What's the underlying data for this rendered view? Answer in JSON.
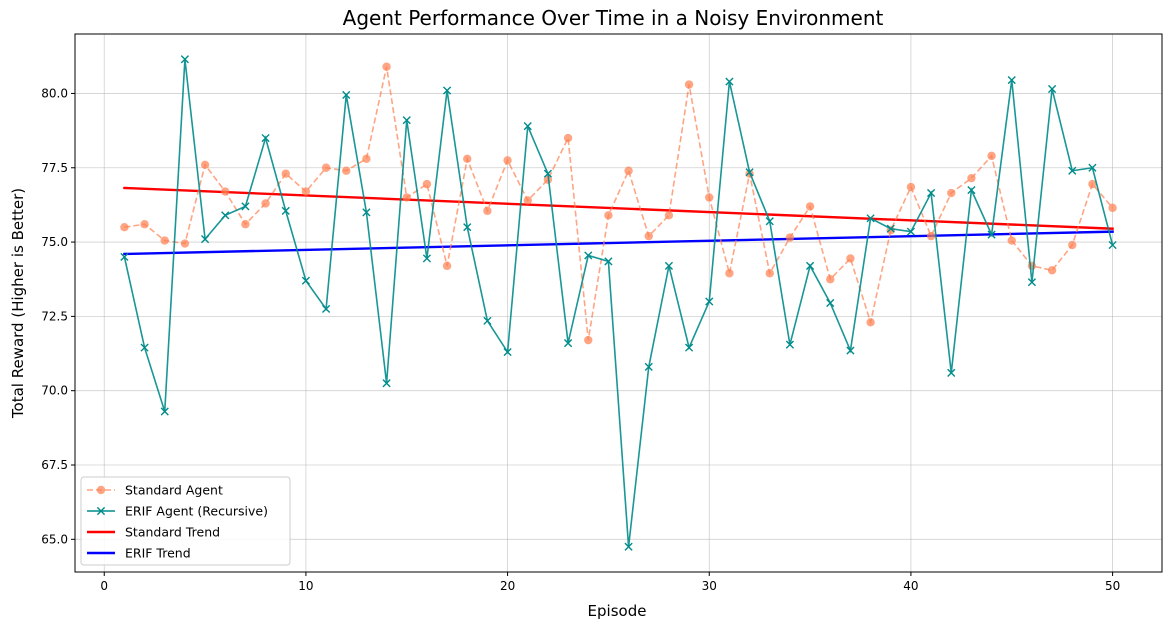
{
  "chart_data": {
    "type": "line",
    "title": "Agent Performance Over Time in a Noisy Environment",
    "xlabel": "Episode",
    "ylabel": "Total Reward (Higher is Better)",
    "xlim": [
      -1.45,
      52.45
    ],
    "ylim": [
      63.9,
      82.0
    ],
    "xticks": [
      0,
      10,
      20,
      30,
      40,
      50
    ],
    "xtick_labels": [
      "0",
      "10",
      "20",
      "30",
      "40",
      "50"
    ],
    "yticks": [
      65.0,
      67.5,
      70.0,
      72.5,
      75.0,
      77.5,
      80.0
    ],
    "ytick_labels": [
      "65.0",
      "67.5",
      "70.0",
      "72.5",
      "75.0",
      "77.5",
      "80.0"
    ],
    "grid": true,
    "legend_position": "lower-left",
    "x": [
      1,
      2,
      3,
      4,
      5,
      6,
      7,
      8,
      9,
      10,
      11,
      12,
      13,
      14,
      15,
      16,
      17,
      18,
      19,
      20,
      21,
      22,
      23,
      24,
      25,
      26,
      27,
      28,
      29,
      30,
      31,
      32,
      33,
      34,
      35,
      36,
      37,
      38,
      39,
      40,
      41,
      42,
      43,
      44,
      45,
      46,
      47,
      48,
      49,
      50
    ],
    "series": [
      {
        "name": "Standard Agent",
        "color": "#ff7f50",
        "style": "dashed",
        "marker": "circle",
        "values": [
          75.5,
          75.6,
          75.05,
          74.95,
          77.6,
          76.7,
          75.6,
          76.3,
          77.3,
          76.7,
          77.5,
          77.4,
          77.8,
          80.9,
          76.5,
          76.95,
          74.2,
          77.8,
          76.05,
          77.75,
          76.4,
          77.1,
          78.5,
          71.7,
          75.9,
          77.4,
          75.2,
          75.9,
          80.3,
          76.5,
          73.95,
          77.3,
          73.95,
          75.15,
          76.2,
          73.75,
          74.45,
          72.3,
          75.4,
          76.85,
          75.2,
          76.65,
          77.15,
          77.9,
          75.05,
          74.2,
          74.05,
          74.9,
          76.95,
          76.15
        ]
      },
      {
        "name": "ERIF Agent (Recursive)",
        "color": "#008b8b",
        "style": "solid",
        "marker": "x",
        "values": [
          74.5,
          71.45,
          69.3,
          81.15,
          75.1,
          75.9,
          76.2,
          78.5,
          76.05,
          73.7,
          72.75,
          79.95,
          76.0,
          70.25,
          79.1,
          74.45,
          80.1,
          75.5,
          72.35,
          71.3,
          78.9,
          77.3,
          71.6,
          74.55,
          74.35,
          64.75,
          70.8,
          74.2,
          71.45,
          73.0,
          80.4,
          77.35,
          75.7,
          71.55,
          74.2,
          72.95,
          71.35,
          75.8,
          75.45,
          75.35,
          76.65,
          70.6,
          76.75,
          75.25,
          80.45,
          73.65,
          80.15,
          77.4,
          77.5,
          74.9
        ]
      }
    ],
    "trends": [
      {
        "name": "Standard Trend",
        "color": "#ff0000",
        "start": [
          1,
          76.82
        ],
        "end": [
          50,
          75.45
        ]
      },
      {
        "name": "ERIF Trend",
        "color": "#0000ff",
        "start": [
          1,
          74.6
        ],
        "end": [
          50,
          75.35
        ]
      }
    ]
  }
}
